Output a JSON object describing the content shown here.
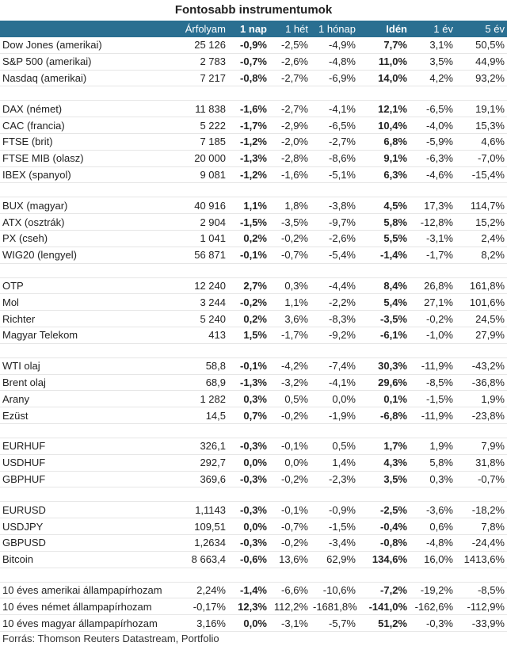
{
  "title": "Fontosabb instrumentumok",
  "headers": [
    "",
    "Árfolyam",
    "1 nap",
    "1 hét",
    "1 hónap",
    "Idén",
    "1 év",
    "5 év"
  ],
  "groups": [
    [
      [
        "Dow Jones (amerikai)",
        "25 126",
        "-0,9%",
        "-2,5%",
        "-4,9%",
        "7,7%",
        "3,1%",
        "50,5%"
      ],
      [
        "S&P 500 (amerikai)",
        "2 783",
        "-0,7%",
        "-2,6%",
        "-4,8%",
        "11,0%",
        "3,5%",
        "44,9%"
      ],
      [
        "Nasdaq (amerikai)",
        "7 217",
        "-0,8%",
        "-2,7%",
        "-6,9%",
        "14,0%",
        "4,2%",
        "93,2%"
      ]
    ],
    [
      [
        "DAX (német)",
        "11 838",
        "-1,6%",
        "-2,7%",
        "-4,1%",
        "12,1%",
        "-6,5%",
        "19,1%"
      ],
      [
        "CAC (francia)",
        "5 222",
        "-1,7%",
        "-2,9%",
        "-6,5%",
        "10,4%",
        "-4,0%",
        "15,3%"
      ],
      [
        "FTSE (brit)",
        "7 185",
        "-1,2%",
        "-2,0%",
        "-2,7%",
        "6,8%",
        "-5,9%",
        "4,6%"
      ],
      [
        "FTSE MIB (olasz)",
        "20 000",
        "-1,3%",
        "-2,8%",
        "-8,6%",
        "9,1%",
        "-6,3%",
        "-7,0%"
      ],
      [
        "IBEX (spanyol)",
        "9 081",
        "-1,2%",
        "-1,6%",
        "-5,1%",
        "6,3%",
        "-4,6%",
        "-15,4%"
      ]
    ],
    [
      [
        "BUX (magyar)",
        "40 916",
        "1,1%",
        "1,8%",
        "-3,8%",
        "4,5%",
        "17,3%",
        "114,7%"
      ],
      [
        "ATX (osztrák)",
        "2 904",
        "-1,5%",
        "-3,5%",
        "-9,7%",
        "5,8%",
        "-12,8%",
        "15,2%"
      ],
      [
        "PX (cseh)",
        "1 041",
        "0,2%",
        "-0,2%",
        "-2,6%",
        "5,5%",
        "-3,1%",
        "2,4%"
      ],
      [
        "WIG20 (lengyel)",
        "56 871",
        "-0,1%",
        "-0,7%",
        "-5,4%",
        "-1,4%",
        "-1,7%",
        "8,2%"
      ]
    ],
    [
      [
        "OTP",
        "12 240",
        "2,7%",
        "0,3%",
        "-4,4%",
        "8,4%",
        "26,8%",
        "161,8%"
      ],
      [
        "Mol",
        "3 244",
        "-0,2%",
        "1,1%",
        "-2,2%",
        "5,4%",
        "27,1%",
        "101,6%"
      ],
      [
        "Richter",
        "5 240",
        "0,2%",
        "3,6%",
        "-8,3%",
        "-3,5%",
        "-0,2%",
        "24,5%"
      ],
      [
        "Magyar Telekom",
        "413",
        "1,5%",
        "-1,7%",
        "-9,2%",
        "-6,1%",
        "-1,0%",
        "27,9%"
      ]
    ],
    [
      [
        "WTI olaj",
        "58,8",
        "-0,1%",
        "-4,2%",
        "-7,4%",
        "30,3%",
        "-11,9%",
        "-43,2%"
      ],
      [
        "Brent olaj",
        "68,9",
        "-1,3%",
        "-3,2%",
        "-4,1%",
        "29,6%",
        "-8,5%",
        "-36,8%"
      ],
      [
        "Arany",
        "1 282",
        "0,3%",
        "0,5%",
        "0,0%",
        "0,1%",
        "-1,5%",
        "1,9%"
      ],
      [
        "Ezüst",
        "14,5",
        "0,7%",
        "-0,2%",
        "-1,9%",
        "-6,8%",
        "-11,9%",
        "-23,8%"
      ]
    ],
    [
      [
        "EURHUF",
        "326,1",
        "-0,3%",
        "-0,1%",
        "0,5%",
        "1,7%",
        "1,9%",
        "7,9%"
      ],
      [
        "USDHUF",
        "292,7",
        "0,0%",
        "0,0%",
        "1,4%",
        "4,3%",
        "5,8%",
        "31,8%"
      ],
      [
        "GBPHUF",
        "369,6",
        "-0,3%",
        "-0,2%",
        "-2,3%",
        "3,5%",
        "0,3%",
        "-0,7%"
      ]
    ],
    [
      [
        "EURUSD",
        "1,1143",
        "-0,3%",
        "-0,1%",
        "-0,9%",
        "-2,5%",
        "-3,6%",
        "-18,2%"
      ],
      [
        "USDJPY",
        "109,51",
        "0,0%",
        "-0,7%",
        "-1,5%",
        "-0,4%",
        "0,6%",
        "7,8%"
      ],
      [
        "GBPUSD",
        "1,2634",
        "-0,3%",
        "-0,2%",
        "-3,4%",
        "-0,8%",
        "-4,8%",
        "-24,4%"
      ],
      [
        "Bitcoin",
        "8 663,4",
        "-0,6%",
        "13,6%",
        "62,9%",
        "134,6%",
        "16,0%",
        "1413,6%"
      ]
    ],
    [
      [
        "10 éves amerikai állampapírhozam",
        "2,24%",
        "-1,4%",
        "-6,6%",
        "-10,6%",
        "-7,2%",
        "-19,2%",
        "-8,5%"
      ],
      [
        "10 éves német állampapírhozam",
        "-0,17%",
        "12,3%",
        "112,2%",
        "-1681,8%",
        "-141,0%",
        "-162,6%",
        "-112,9%"
      ],
      [
        "10 éves magyar állampapírhozam",
        "3,16%",
        "0,0%",
        "-3,1%",
        "-5,7%",
        "51,2%",
        "-0,3%",
        "-33,9%"
      ]
    ]
  ],
  "source": "Forrás: Thomson Reuters Datastream, Portfolio"
}
